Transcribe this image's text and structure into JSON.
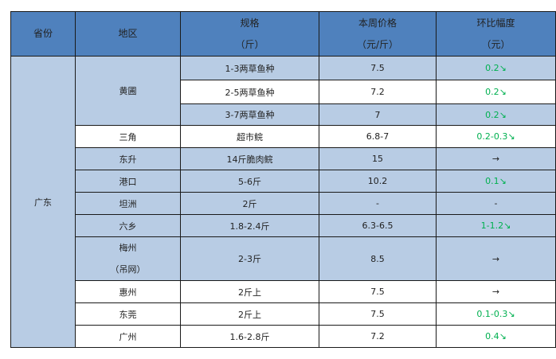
{
  "colors": {
    "header": "#4F81BD",
    "light_row": "#B8CCE4",
    "decrease": "#00B050"
  },
  "header": {
    "province": "省份",
    "region": "地区",
    "spec_l1": "规格",
    "spec_l2": "（斤）",
    "price_l1": "本周价格",
    "price_l2": "（元/斤）",
    "change_l1": "环比幅度",
    "change_l2": "（元）"
  },
  "province": "广东",
  "rows": [
    {
      "region": "黄圃",
      "spec": "1-3两草鱼种",
      "price": "7.5",
      "change": "0.2↘",
      "trend": "down"
    },
    {
      "spec": "2-5两草鱼种",
      "price": "7.2",
      "change": "0.2↘",
      "trend": "down"
    },
    {
      "spec": "3-7两草鱼种",
      "price": "7",
      "change": "0.2↘",
      "trend": "down"
    },
    {
      "region": "三角",
      "spec": "超市鲩",
      "price": "6.8-7",
      "change": "0.2-0.3↘",
      "trend": "down"
    },
    {
      "region": "东升",
      "spec": "14斤脆肉鲩",
      "price": "15",
      "change": "→",
      "trend": "flat"
    },
    {
      "region": "港口",
      "spec": "5-6斤",
      "price": "10.2",
      "change": "0.1↘",
      "trend": "down"
    },
    {
      "region": "坦洲",
      "spec": "2斤",
      "price": "-",
      "change": "-",
      "trend": "none"
    },
    {
      "region": "六乡",
      "spec": "1.8-2.4斤",
      "price": "6.3-6.5",
      "change": "1-1.2↘",
      "trend": "down"
    },
    {
      "region": "梅州",
      "region_l2": "（吊网）",
      "spec": "2-3斤",
      "price": "8.5",
      "change": "→",
      "trend": "flat"
    },
    {
      "region": "惠州",
      "spec": "2斤上",
      "price": "7.5",
      "change": "→",
      "trend": "flat"
    },
    {
      "region": "东莞",
      "spec": "2斤上",
      "price": "7.5",
      "change": "0.1-0.3↘",
      "trend": "down"
    },
    {
      "region": "广州",
      "spec": "1.6-2.8斤",
      "price": "7.2",
      "change": "0.4↘",
      "trend": "down"
    }
  ]
}
